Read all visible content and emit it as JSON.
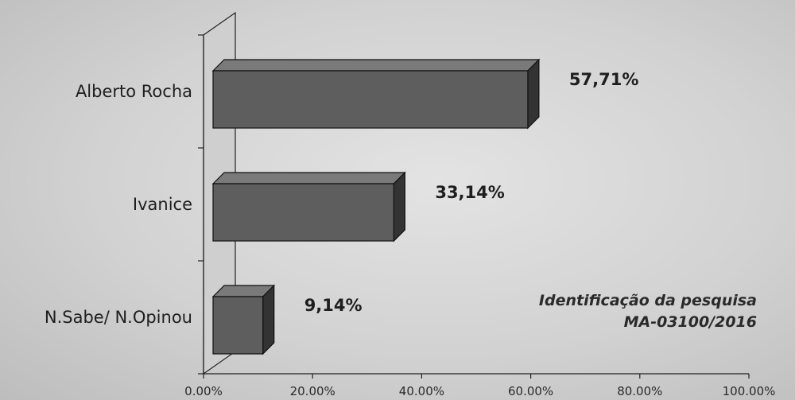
{
  "chart_data": {
    "type": "bar",
    "orientation": "horizontal",
    "three_d": true,
    "categories": [
      "Alberto Rocha",
      "Ivanice",
      "N.Sabe/ N.Opinou"
    ],
    "values": [
      57.71,
      33.14,
      9.14
    ],
    "value_labels": [
      "57,71%",
      "33,14%",
      "9,14%"
    ],
    "x_ticks": [
      "0.00%",
      "20.00%",
      "40.00%",
      "60.00%",
      "80.00%",
      "100.00%"
    ],
    "xlim": [
      0,
      100
    ],
    "grid": false,
    "colors": {
      "bar_front": "#5e5e5e",
      "bar_top": "#7a7a7a",
      "bar_side": "#333333",
      "wall": "#cfcfcf"
    }
  },
  "annotation": {
    "line1": "Identificação da pesquisa",
    "line2": "MA-03100/2016"
  }
}
